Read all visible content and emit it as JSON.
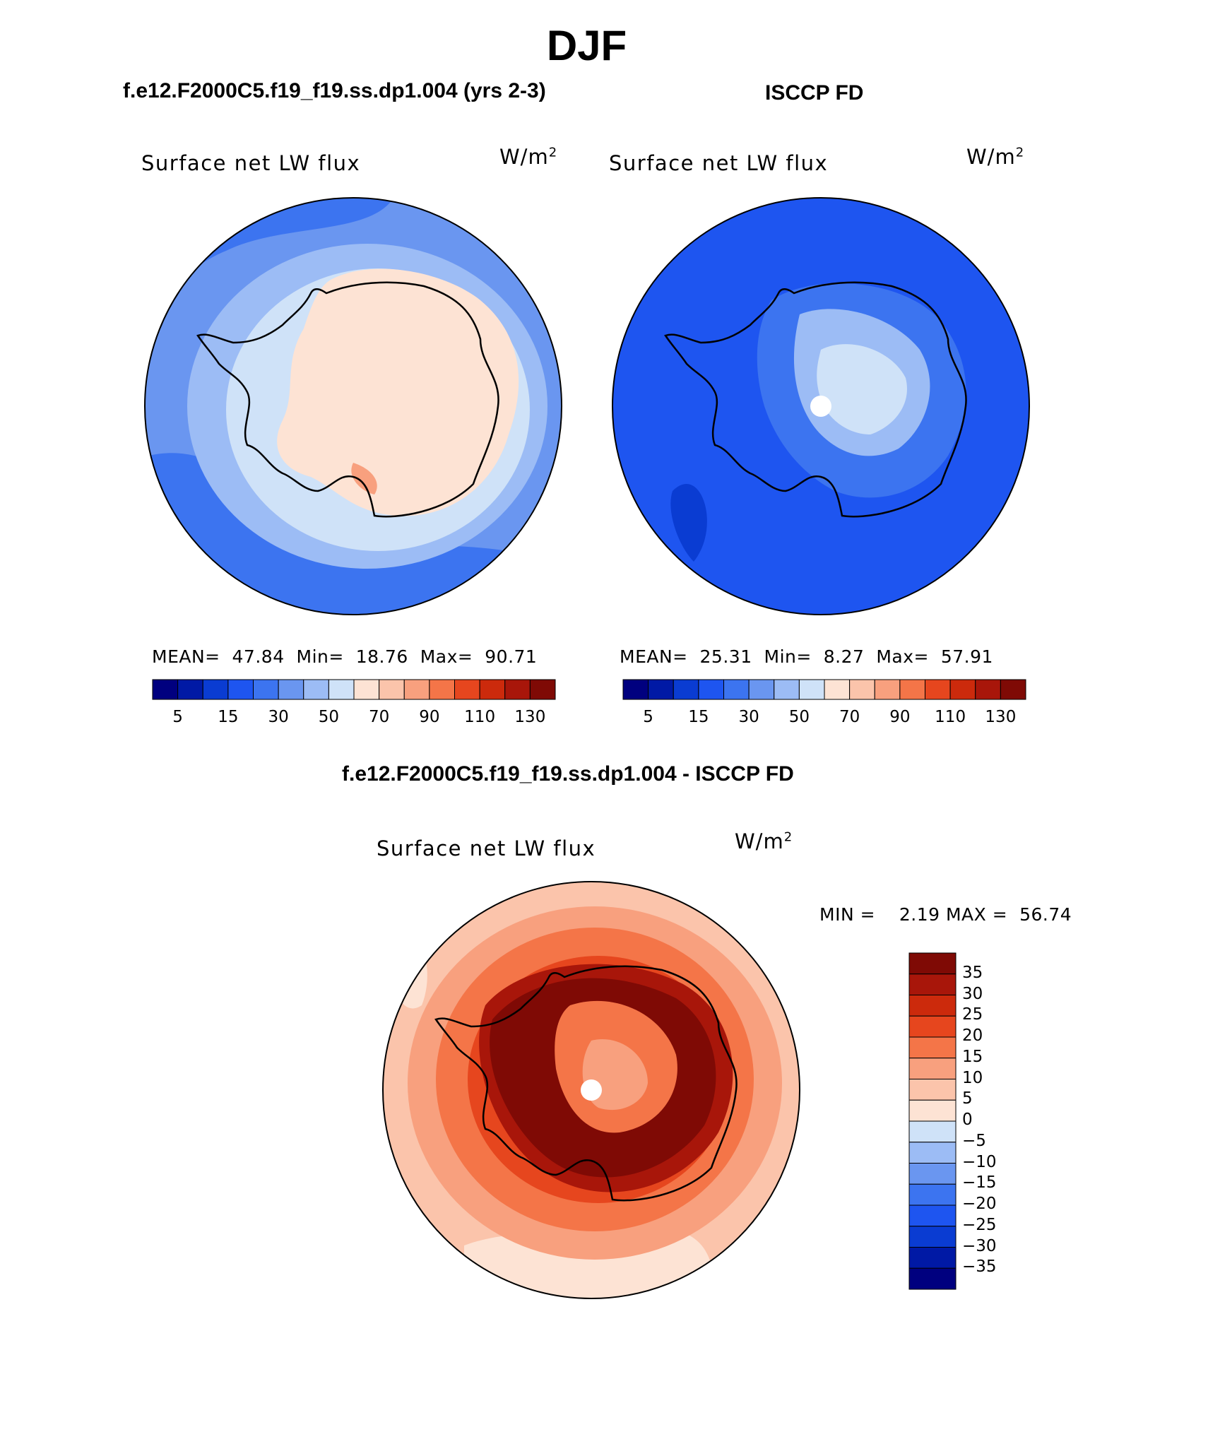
{
  "title": "DJF",
  "panels": [
    {
      "id": "model",
      "heading": "f.e12.F2000C5.f19_f19.ss.dp1.004 (yrs 2-3)",
      "label": "Surface net LW flux",
      "units_base": "W/m",
      "units_exp": "2",
      "stats": {
        "mean_label": "MEAN=",
        "mean": "47.84",
        "min_label": "Min=",
        "min": "18.76",
        "max_label": "Max=",
        "max": "90.71"
      }
    },
    {
      "id": "obs",
      "heading": "ISCCP FD",
      "label": "Surface net LW flux",
      "units_base": "W/m",
      "units_exp": "2",
      "stats": {
        "mean_label": "MEAN=",
        "mean": "25.31",
        "min_label": "Min=",
        "min": "8.27",
        "max_label": "Max=",
        "max": "57.91"
      }
    }
  ],
  "difference": {
    "heading": "f.e12.F2000C5.f19_f19.ss.dp1.004 - ISCCP FD",
    "label": "Surface net LW flux",
    "units_base": "W/m",
    "units_exp": "2",
    "stats": {
      "min_label": "MIN =",
      "min": "2.19",
      "max_label": "MAX =",
      "max": "56.74"
    }
  },
  "chart_data": [
    {
      "type": "contour-map",
      "projection": "south-polar-stereographic",
      "title": "f.e12.F2000C5.f19_f19.ss.dp1.004 (yrs 2-3)",
      "variable": "Surface net LW flux",
      "units": "W/m2",
      "levels": [
        5,
        15,
        30,
        50,
        70,
        90,
        110,
        130
      ],
      "colorbar_labels": [
        "5",
        "15",
        "30",
        "50",
        "70",
        "90",
        "110",
        "130"
      ],
      "colors": [
        "#00007f",
        "#0019a5",
        "#0a3cd2",
        "#1e55f0",
        "#3c74f0",
        "#6a96f0",
        "#9cbcf5",
        "#cfe2f8",
        "#fde3d4",
        "#fbc4ab",
        "#f8a07e",
        "#f47548",
        "#e6461e",
        "#cc2a0c",
        "#a8160a",
        "#7f0a05"
      ],
      "mean": 47.84,
      "min": 18.76,
      "max": 90.71
    },
    {
      "type": "contour-map",
      "projection": "south-polar-stereographic",
      "title": "ISCCP FD",
      "variable": "Surface net LW flux",
      "units": "W/m2",
      "levels": [
        5,
        15,
        30,
        50,
        70,
        90,
        110,
        130
      ],
      "colorbar_labels": [
        "5",
        "15",
        "30",
        "50",
        "70",
        "90",
        "110",
        "130"
      ],
      "colors": [
        "#00007f",
        "#0019a5",
        "#0a3cd2",
        "#1e55f0",
        "#3c74f0",
        "#6a96f0",
        "#9cbcf5",
        "#cfe2f8",
        "#fde3d4",
        "#fbc4ab",
        "#f8a07e",
        "#f47548",
        "#e6461e",
        "#cc2a0c",
        "#a8160a",
        "#7f0a05"
      ],
      "mean": 25.31,
      "min": 8.27,
      "max": 57.91
    },
    {
      "type": "contour-map",
      "projection": "south-polar-stereographic",
      "title": "f.e12.F2000C5.f19_f19.ss.dp1.004 - ISCCP FD",
      "variable": "Surface net LW flux",
      "units": "W/m2",
      "levels": [
        35,
        30,
        25,
        20,
        15,
        10,
        5,
        0,
        -5,
        -10,
        -15,
        -20,
        -25,
        -30,
        -35
      ],
      "colorbar_labels": [
        "35",
        "30",
        "25",
        "20",
        "15",
        "10",
        "5",
        "0",
        "−5",
        "−10",
        "−15",
        "−20",
        "−25",
        "−30",
        "−35"
      ],
      "colors": [
        "#7f0a05",
        "#a8160a",
        "#cc2a0c",
        "#e6461e",
        "#f47548",
        "#f8a07e",
        "#fbc4ab",
        "#fde3d4",
        "#cfe2f8",
        "#9cbcf5",
        "#6a96f0",
        "#3c74f0",
        "#1e55f0",
        "#0a3cd2",
        "#0019a5",
        "#00007f"
      ],
      "min": 2.19,
      "max": 56.74
    }
  ]
}
